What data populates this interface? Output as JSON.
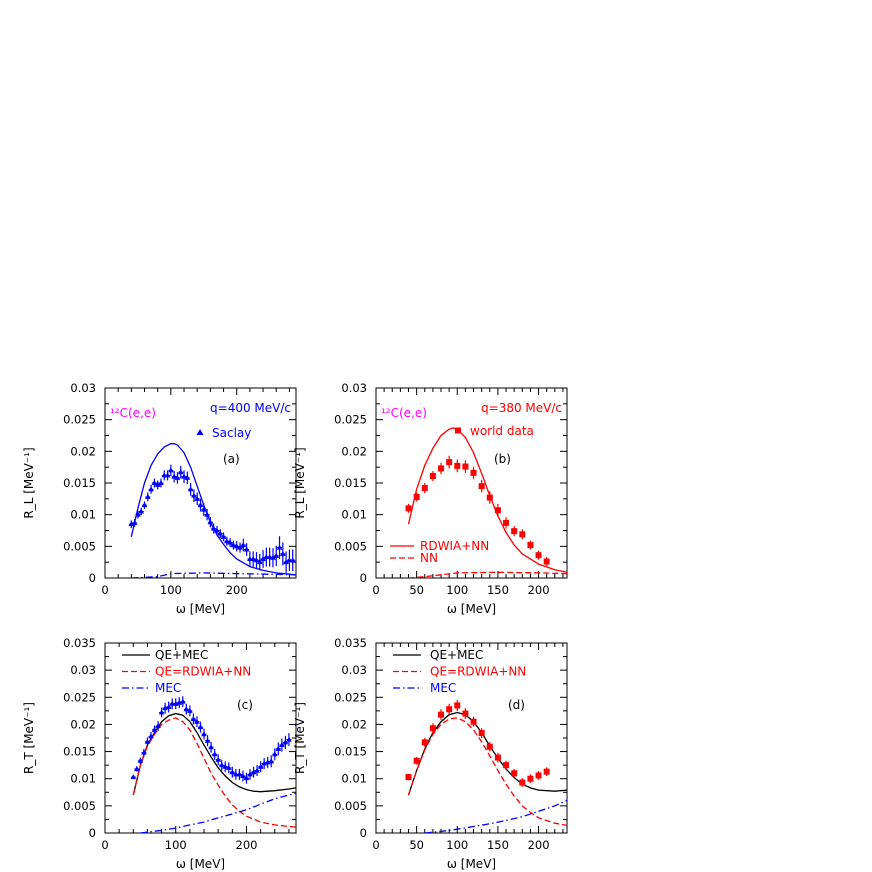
{
  "chart_data": [
    {
      "id": "a",
      "type": "scatter+line",
      "panel_label": "(a)",
      "xlabel": "ω [MeV]",
      "ylabel": "R_L [MeV⁻¹]",
      "xlim": [
        0,
        290
      ],
      "ylim": [
        0,
        0.03
      ],
      "xticks": [
        0,
        100,
        200
      ],
      "xminor": 20,
      "yticks": [
        0,
        0.005,
        0.01,
        0.015,
        0.02,
        0.025,
        0.03
      ],
      "yminor": 0.0025,
      "annotations": [
        {
          "text": "¹²C(e,e)",
          "color": "#ff00ff"
        },
        {
          "text": "q=400 MeV/c",
          "color": "#0000ff"
        }
      ],
      "legend": [
        {
          "text": "Saclay",
          "marker": "triangle",
          "color": "#0000ff"
        }
      ],
      "data_series": {
        "name": "Saclay",
        "color": "#0000ff",
        "marker": "triangle",
        "x": [
          40,
          45,
          50,
          55,
          60,
          65,
          70,
          75,
          80,
          85,
          90,
          95,
          100,
          105,
          110,
          115,
          120,
          125,
          130,
          135,
          140,
          145,
          150,
          155,
          160,
          165,
          170,
          175,
          180,
          185,
          190,
          195,
          200,
          205,
          210,
          215,
          220,
          225,
          230,
          235,
          240,
          245,
          250,
          255,
          260,
          265,
          270,
          275,
          280,
          285
        ],
        "y": [
          0.0085,
          0.0087,
          0.01,
          0.0105,
          0.0115,
          0.0128,
          0.014,
          0.015,
          0.0147,
          0.015,
          0.0162,
          0.0162,
          0.017,
          0.016,
          0.0158,
          0.0167,
          0.016,
          0.0158,
          0.014,
          0.013,
          0.0125,
          0.0115,
          0.0108,
          0.01,
          0.0088,
          0.0078,
          0.0075,
          0.007,
          0.0065,
          0.0058,
          0.0056,
          0.0052,
          0.005,
          0.0048,
          0.0052,
          0.0045,
          0.003,
          0.003,
          0.0028,
          0.0025,
          0.003,
          0.0033,
          0.0033,
          0.0032,
          0.0035,
          0.0048,
          0.0038,
          0.0025,
          0.0028,
          0.0028
        ],
        "err": [
          0.0006,
          0.0006,
          0.0006,
          0.0006,
          0.0006,
          0.0007,
          0.0007,
          0.0007,
          0.0007,
          0.0007,
          0.0008,
          0.0008,
          0.0009,
          0.0009,
          0.0009,
          0.001,
          0.001,
          0.001,
          0.001,
          0.001,
          0.001,
          0.001,
          0.001,
          0.0009,
          0.0008,
          0.0008,
          0.0007,
          0.0007,
          0.0007,
          0.0007,
          0.0007,
          0.0007,
          0.0008,
          0.0008,
          0.001,
          0.001,
          0.0012,
          0.0012,
          0.0013,
          0.0013,
          0.0014,
          0.0015,
          0.0015,
          0.0015,
          0.0016,
          0.0018,
          0.0018,
          0.0017,
          0.0017,
          0.0017
        ]
      },
      "curves": [
        {
          "style": "solid",
          "color": "#0000ff",
          "x": [
            40,
            50,
            60,
            70,
            80,
            90,
            100,
            105,
            110,
            120,
            130,
            140,
            150,
            160,
            170,
            180,
            190,
            200,
            220,
            240,
            260,
            280,
            290
          ],
          "y": [
            0.0065,
            0.011,
            0.015,
            0.0178,
            0.0196,
            0.0207,
            0.0212,
            0.0212,
            0.021,
            0.0198,
            0.0175,
            0.0145,
            0.0115,
            0.0088,
            0.0068,
            0.0053,
            0.004,
            0.003,
            0.0018,
            0.0012,
            0.0008,
            0.0006,
            0.0005
          ]
        },
        {
          "style": "dashdot",
          "color": "#0000ff",
          "x": [
            40,
            60,
            80,
            100,
            150,
            200,
            250,
            290
          ],
          "y": [
            0,
            0.0001,
            0.0002,
            0.0007,
            0.0008,
            0.0007,
            0.0006,
            0.0005
          ]
        }
      ]
    },
    {
      "id": "b",
      "type": "scatter+line",
      "panel_label": "(b)",
      "xlabel": "ω [MeV]",
      "ylabel": "R_L [MeV⁻¹]",
      "xlim": [
        0,
        235
      ],
      "ylim": [
        0,
        0.03
      ],
      "xticks": [
        0,
        50,
        100,
        150,
        200
      ],
      "xminor": 10,
      "yticks": [
        0,
        0.005,
        0.01,
        0.015,
        0.02,
        0.025,
        0.03
      ],
      "yminor": 0.0025,
      "annotations": [
        {
          "text": "¹²C(e,e)",
          "color": "#ff00ff"
        },
        {
          "text": "q=380 MeV/c",
          "color": "#ff0000"
        }
      ],
      "legend": [
        {
          "text": "world data",
          "marker": "square",
          "color": "#ff0000"
        },
        {
          "text": "RDWIA+NN",
          "style": "solid",
          "color": "#ff0000"
        },
        {
          "text": "NN",
          "style": "dashed",
          "color": "#ff0000"
        }
      ],
      "data_series": {
        "name": "world data",
        "color": "#ff0000",
        "marker": "square",
        "x": [
          40,
          50,
          60,
          70,
          80,
          90,
          100,
          110,
          120,
          130,
          140,
          150,
          160,
          170,
          180,
          190,
          200,
          210
        ],
        "y": [
          0.011,
          0.0128,
          0.0142,
          0.0161,
          0.0173,
          0.0183,
          0.0177,
          0.0176,
          0.0166,
          0.0145,
          0.0127,
          0.0107,
          0.0087,
          0.0074,
          0.0069,
          0.0052,
          0.0036,
          0.0026
        ],
        "err": [
          0.0007,
          0.0007,
          0.0008,
          0.0008,
          0.0009,
          0.001,
          0.001,
          0.001,
          0.001,
          0.001,
          0.001,
          0.001,
          0.0009,
          0.0008,
          0.0008,
          0.0007,
          0.0007,
          0.0007
        ]
      },
      "curves": [
        {
          "name": "RDWIA+NN",
          "style": "solid",
          "color": "#ff0000",
          "x": [
            40,
            50,
            60,
            70,
            80,
            90,
            95,
            100,
            110,
            120,
            130,
            140,
            150,
            160,
            170,
            180,
            200,
            220,
            235
          ],
          "y": [
            0.0085,
            0.014,
            0.0178,
            0.0205,
            0.0225,
            0.0235,
            0.0237,
            0.0235,
            0.0222,
            0.0198,
            0.0165,
            0.013,
            0.0098,
            0.0072,
            0.0052,
            0.0038,
            0.0022,
            0.0013,
            0.0009
          ]
        },
        {
          "name": "NN",
          "style": "dashed",
          "color": "#ff0000",
          "x": [
            40,
            60,
            80,
            100,
            150,
            200,
            235
          ],
          "y": [
            0,
            0.0002,
            0.0005,
            0.0008,
            0.0009,
            0.0008,
            0.0007
          ]
        }
      ]
    },
    {
      "id": "c",
      "type": "scatter+line",
      "panel_label": "(c)",
      "xlabel": "ω [MeV]",
      "ylabel": "R_T [MeV⁻¹]",
      "xlim": [
        0,
        270
      ],
      "ylim": [
        0,
        0.035
      ],
      "xticks": [
        0,
        100,
        200
      ],
      "xminor": 20,
      "yticks": [
        0,
        0.005,
        0.01,
        0.015,
        0.02,
        0.025,
        0.03,
        0.035
      ],
      "yminor": 0.0025,
      "annotations": [],
      "legend": [
        {
          "text": "QE+MEC",
          "style": "solid",
          "color": "#000000"
        },
        {
          "text": "QE=RDWIA+NN",
          "style": "dashed",
          "color": "#ff0000"
        },
        {
          "text": "MEC",
          "style": "dashdot",
          "color": "#0000ff"
        }
      ],
      "data_series": {
        "color": "#0000ff",
        "marker": "triangle",
        "x": [
          40,
          45,
          50,
          55,
          60,
          65,
          70,
          75,
          80,
          85,
          90,
          95,
          100,
          105,
          110,
          115,
          120,
          125,
          130,
          135,
          140,
          145,
          150,
          155,
          160,
          165,
          170,
          175,
          180,
          185,
          190,
          195,
          200,
          205,
          210,
          215,
          220,
          225,
          230,
          235,
          240,
          245,
          250,
          255,
          260
        ],
        "y": [
          0.0103,
          0.0118,
          0.0133,
          0.0148,
          0.0168,
          0.0178,
          0.019,
          0.0197,
          0.0222,
          0.023,
          0.0232,
          0.0238,
          0.0238,
          0.024,
          0.0242,
          0.0228,
          0.0225,
          0.021,
          0.0205,
          0.0195,
          0.0182,
          0.017,
          0.0158,
          0.0145,
          0.0135,
          0.0125,
          0.0122,
          0.012,
          0.0112,
          0.0108,
          0.0108,
          0.0105,
          0.0101,
          0.0108,
          0.0112,
          0.0115,
          0.0122,
          0.0128,
          0.013,
          0.0132,
          0.0145,
          0.0155,
          0.0162,
          0.0167,
          0.0172
        ],
        "err": [
          0,
          0.0005,
          0.0006,
          0.0007,
          0.0008,
          0.0008,
          0.0008,
          0.0009,
          0.0009,
          0.001,
          0.001,
          0.001,
          0.001,
          0.001,
          0.001,
          0.001,
          0.001,
          0.001,
          0.001,
          0.001,
          0.001,
          0.001,
          0.001,
          0.001,
          0.001,
          0.001,
          0.001,
          0.001,
          0.001,
          0.001,
          0.001,
          0.001,
          0.001,
          0.001,
          0.001,
          0.001,
          0.001,
          0.001,
          0.001,
          0.0011,
          0.0011,
          0.0012,
          0.0012,
          0.0012,
          0.0012
        ]
      },
      "curves": [
        {
          "name": "QE+MEC",
          "style": "solid",
          "color": "#000000",
          "x": [
            40,
            50,
            60,
            70,
            80,
            90,
            100,
            110,
            120,
            130,
            140,
            150,
            160,
            170,
            180,
            190,
            200,
            210,
            220,
            240,
            260,
            270
          ],
          "y": [
            0.007,
            0.0125,
            0.0162,
            0.0185,
            0.0205,
            0.0216,
            0.022,
            0.0217,
            0.0205,
            0.0185,
            0.0162,
            0.014,
            0.012,
            0.0105,
            0.0093,
            0.0085,
            0.008,
            0.0077,
            0.0076,
            0.0078,
            0.0081,
            0.0083
          ]
        },
        {
          "name": "QE=RDWIA+NN",
          "style": "dashed",
          "color": "#ff0000",
          "x": [
            40,
            50,
            60,
            70,
            80,
            90,
            100,
            110,
            120,
            130,
            140,
            150,
            160,
            170,
            180,
            190,
            200,
            220,
            240,
            260,
            270
          ],
          "y": [
            0.007,
            0.0125,
            0.016,
            0.0182,
            0.02,
            0.0208,
            0.0212,
            0.0205,
            0.019,
            0.0165,
            0.0138,
            0.011,
            0.0088,
            0.0068,
            0.0052,
            0.004,
            0.0031,
            0.002,
            0.0015,
            0.0012,
            0.0011
          ]
        },
        {
          "name": "MEC",
          "style": "dashdot",
          "color": "#0000ff",
          "x": [
            50,
            80,
            100,
            120,
            140,
            160,
            180,
            200,
            220,
            240,
            260,
            270
          ],
          "y": [
            0,
            0.0005,
            0.0009,
            0.0015,
            0.002,
            0.0028,
            0.0035,
            0.0043,
            0.0053,
            0.0063,
            0.007,
            0.0073
          ]
        }
      ]
    },
    {
      "id": "d",
      "type": "scatter+line",
      "panel_label": "(d)",
      "xlabel": "ω [MeV]",
      "ylabel": "R_T [MeV⁻¹]",
      "xlim": [
        0,
        235
      ],
      "ylim": [
        0,
        0.035
      ],
      "xticks": [
        0,
        50,
        100,
        150,
        200
      ],
      "xminor": 10,
      "yticks": [
        0,
        0.005,
        0.01,
        0.015,
        0.02,
        0.025,
        0.03,
        0.035
      ],
      "yminor": 0.0025,
      "annotations": [],
      "legend": [
        {
          "text": "QE+MEC",
          "style": "solid",
          "color": "#000000"
        },
        {
          "text": "QE=RDWIA+NN",
          "style": "dashed",
          "color": "#ff0000"
        },
        {
          "text": "MEC",
          "style": "dashdot",
          "color": "#0000ff"
        }
      ],
      "data_series": {
        "color": "#ff0000",
        "marker": "square",
        "x": [
          40,
          50,
          60,
          70,
          80,
          90,
          100,
          110,
          120,
          130,
          140,
          150,
          160,
          170,
          180,
          190,
          200,
          210
        ],
        "y": [
          0.0103,
          0.0133,
          0.0167,
          0.0193,
          0.0218,
          0.0228,
          0.0235,
          0.022,
          0.0205,
          0.0184,
          0.0159,
          0.0139,
          0.0125,
          0.011,
          0.0093,
          0.01,
          0.0106,
          0.0113
        ],
        "err": [
          0.0006,
          0.0007,
          0.0008,
          0.0009,
          0.001,
          0.001,
          0.001,
          0.001,
          0.0009,
          0.0009,
          0.0009,
          0.0009,
          0.0008,
          0.0008,
          0.0008,
          0.0008,
          0.0008,
          0.0008
        ]
      },
      "curves": [
        {
          "name": "QE+MEC",
          "style": "solid",
          "color": "#000000",
          "x": [
            40,
            50,
            60,
            70,
            80,
            90,
            100,
            110,
            120,
            130,
            140,
            150,
            160,
            170,
            180,
            190,
            200,
            220,
            235
          ],
          "y": [
            0.007,
            0.0115,
            0.0155,
            0.0185,
            0.0205,
            0.0218,
            0.0222,
            0.0218,
            0.0205,
            0.0185,
            0.016,
            0.0138,
            0.0118,
            0.0102,
            0.009,
            0.0083,
            0.0079,
            0.0077,
            0.0079
          ]
        },
        {
          "name": "QE=RDWIA+NN",
          "style": "dashed",
          "color": "#ff0000",
          "x": [
            40,
            50,
            60,
            70,
            80,
            90,
            100,
            110,
            120,
            130,
            140,
            150,
            160,
            170,
            180,
            190,
            200,
            220,
            235
          ],
          "y": [
            0.007,
            0.0115,
            0.0153,
            0.0182,
            0.02,
            0.021,
            0.0212,
            0.0205,
            0.019,
            0.0168,
            0.0142,
            0.0115,
            0.009,
            0.0068,
            0.005,
            0.0038,
            0.0028,
            0.0018,
            0.0014
          ]
        },
        {
          "name": "MEC",
          "style": "dashdot",
          "color": "#0000ff",
          "x": [
            60,
            80,
            100,
            120,
            140,
            160,
            180,
            200,
            220,
            235
          ],
          "y": [
            0,
            0.0003,
            0.0007,
            0.0012,
            0.0017,
            0.0023,
            0.003,
            0.004,
            0.005,
            0.006
          ]
        }
      ]
    }
  ]
}
